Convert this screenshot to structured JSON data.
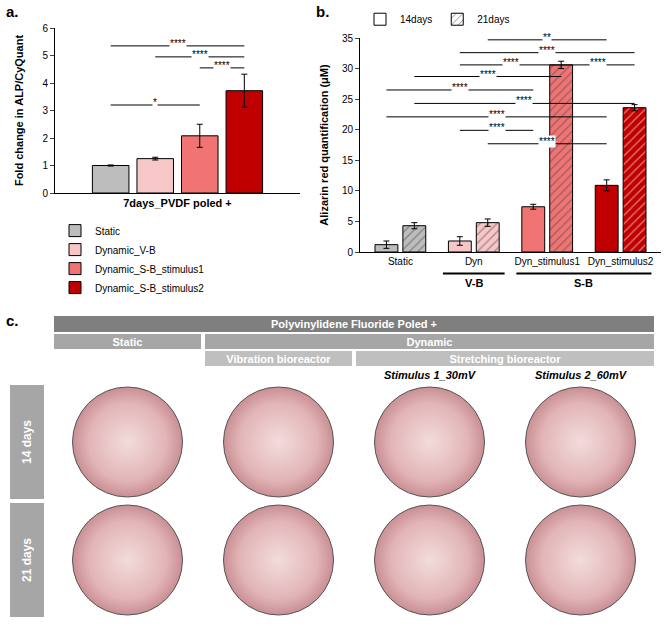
{
  "chart_data": [
    {
      "panel": "a.",
      "type": "bar",
      "y_label": "Fold change in ALP/CyQuant",
      "categories": [
        "7days_PVDF poled +"
      ],
      "series": [
        {
          "name": "Static",
          "color": "#bdbdbd",
          "values": [
            1.0
          ],
          "errors": [
            0.02
          ]
        },
        {
          "name": "Dynamic_V-B",
          "color": "#f7c6c6",
          "values": [
            1.25
          ],
          "errors": [
            0.05
          ]
        },
        {
          "name": "Dynamic_S-B_stimulus1",
          "color": "#f07474",
          "values": [
            2.08
          ],
          "errors": [
            0.42
          ]
        },
        {
          "name": "Dynamic_S-B_stimulus2",
          "color": "#c00000",
          "values": [
            3.72
          ],
          "errors": [
            0.6
          ]
        }
      ],
      "ylim": [
        0,
        6
      ],
      "yticks": [
        0,
        1,
        2,
        3,
        4,
        5,
        6
      ],
      "grid": false,
      "legend": "bottom",
      "comparisons": [
        {
          "from": [
            "7days_PVDF poled +",
            "Static"
          ],
          "to": [
            "7days_PVDF poled +",
            "Dynamic_S-B_stimulus2"
          ],
          "y": 5.35,
          "label": "****"
        },
        {
          "from": [
            "7days_PVDF poled +",
            "Dynamic_V-B"
          ],
          "to": [
            "7days_PVDF poled +",
            "Dynamic_S-B_stimulus2"
          ],
          "y": 4.95,
          "label": "****"
        },
        {
          "from": [
            "7days_PVDF poled +",
            "Dynamic_S-B_stimulus1"
          ],
          "to": [
            "7days_PVDF poled +",
            "Dynamic_S-B_stimulus2"
          ],
          "y": 4.55,
          "label": "****"
        },
        {
          "from": [
            "7days_PVDF poled +",
            "Static"
          ],
          "to": [
            "7days_PVDF poled +",
            "Dynamic_S-B_stimulus1"
          ],
          "y": 3.2,
          "label": "*"
        }
      ]
    },
    {
      "panel": "b.",
      "type": "bar",
      "y_label": "Alizarin red quantification (μM)",
      "categories": [
        "Static",
        "Dyn",
        "Dyn_stimulus1",
        "Dyn_stimulus2"
      ],
      "groups": [
        {
          "label": "V-B",
          "categories": [
            "Dyn"
          ]
        },
        {
          "label": "S-B",
          "categories": [
            "Dyn_stimulus1",
            "Dyn_stimulus2"
          ]
        }
      ],
      "series": [
        {
          "name": "14days",
          "color": "#ffffff",
          "marker": "plain",
          "colors": [
            "#bdbdbd",
            "#f7c6c6",
            "#f07474",
            "#c00000"
          ],
          "values": [
            1.2,
            1.8,
            7.4,
            10.9
          ],
          "errors": [
            0.6,
            0.7,
            0.4,
            0.9
          ]
        },
        {
          "name": "21days",
          "color": "#ffffff",
          "marker": "hatched",
          "colors": [
            "#bdbdbd",
            "#f7c6c6",
            "#f07474",
            "#c00000"
          ],
          "values": [
            4.3,
            4.8,
            30.6,
            23.6
          ],
          "errors": [
            0.5,
            0.6,
            0.6,
            0.5
          ]
        }
      ],
      "ylim": [
        0,
        35
      ],
      "yticks": [
        0,
        5,
        10,
        15,
        20,
        25,
        30,
        35
      ],
      "grid": false,
      "legend": "top",
      "comparisons": [
        {
          "from": [
            "Dyn",
            "21days"
          ],
          "to": [
            "Dyn_stimulus2",
            "14days"
          ],
          "y": 34.7,
          "label": "**"
        },
        {
          "from": [
            "Dyn",
            "14days"
          ],
          "to": [
            "Dyn_stimulus2",
            "21days"
          ],
          "y": 32.6,
          "label": "****"
        },
        {
          "from": [
            "Dyn",
            "14days"
          ],
          "to": [
            "Dyn_stimulus1",
            "21days"
          ],
          "y": 30.6,
          "label": "****"
        },
        {
          "from": [
            "Dyn_stimulus1",
            "21days"
          ],
          "to": [
            "Dyn_stimulus2",
            "21days"
          ],
          "y": 30.6,
          "label": "****"
        },
        {
          "from": [
            "Static",
            "21days"
          ],
          "to": [
            "Dyn_stimulus1",
            "21days"
          ],
          "y": 28.7,
          "label": "****"
        },
        {
          "from": [
            "Static",
            "14days"
          ],
          "to": [
            "Dyn_stimulus1",
            "14days"
          ],
          "y": 26.5,
          "label": "****"
        },
        {
          "from": [
            "Static",
            "21days"
          ],
          "to": [
            "Dyn_stimulus2",
            "21days"
          ],
          "y": 24.3,
          "label": "****"
        },
        {
          "from": [
            "Static",
            "14days"
          ],
          "to": [
            "Dyn_stimulus2",
            "14days"
          ],
          "y": 22.1,
          "label": "****"
        },
        {
          "from": [
            "Dyn",
            "14days"
          ],
          "to": [
            "Dyn_stimulus1",
            "14days"
          ],
          "y": 19.9,
          "label": "****"
        },
        {
          "from": [
            "Dyn",
            "21days"
          ],
          "to": [
            "Dyn_stimulus2",
            "14days"
          ],
          "y": 17.7,
          "label": "****"
        }
      ]
    }
  ],
  "micrographs": {
    "panel": "c.",
    "header_rows": [
      [
        {
          "text": "Polyvinylidene Fluoride Poled +",
          "from": 0,
          "to": 3
        }
      ],
      [
        {
          "text": "Static",
          "from": 0,
          "to": 0
        },
        {
          "text": "Dynamic",
          "from": 1,
          "to": 3
        }
      ],
      [
        {
          "text": "Vibration bioreactor",
          "from": 1,
          "to": 1
        },
        {
          "text": "Stretching bioreactor",
          "from": 2,
          "to": 3
        }
      ],
      [
        {
          "text": "Stimulus 1_30mV",
          "from": 2,
          "to": 2
        },
        {
          "text": "Stimulus 2_60mV",
          "from": 3,
          "to": 3
        }
      ]
    ],
    "columns": 4,
    "rows": [
      "14 days",
      "21 days"
    ]
  }
}
